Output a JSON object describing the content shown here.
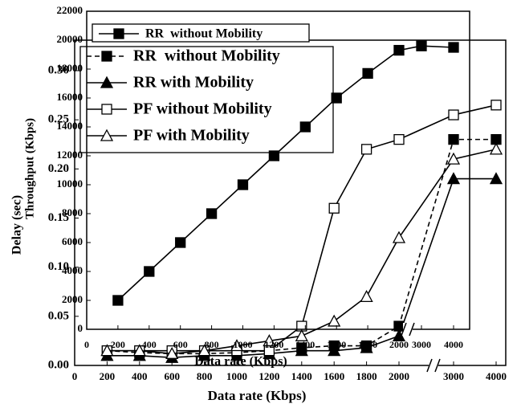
{
  "chart_data": [
    {
      "type": "line",
      "xlabel": "Data rate (Kbps)",
      "ylabel": "Delay (sec)",
      "x": [
        200,
        400,
        600,
        800,
        1000,
        1200,
        1400,
        1600,
        1800,
        2000,
        3000,
        4000
      ],
      "xticks": [
        0,
        200,
        400,
        600,
        800,
        1000,
        1200,
        1400,
        1600,
        1800,
        2000,
        3000,
        4000
      ],
      "ylim": [
        0,
        0.3
      ],
      "yticks": [
        {
          "value": 0,
          "label": "0.00"
        },
        0.05,
        {
          "value": 0.1,
          "label": "0.10"
        },
        0.15,
        {
          "value": 0.2,
          "label": "0.20"
        },
        0.25,
        {
          "value": 0.3,
          "label": "0.30"
        }
      ],
      "series": [
        {
          "name": "RR  without Mobility",
          "color": "#000000",
          "marker": "square-filled",
          "dashed": true,
          "values": [
            0.015,
            0.013,
            0.012,
            0.012,
            0.013,
            0.015,
            0.018,
            0.02,
            0.02,
            0.04,
            0.23,
            0.23
          ]
        },
        {
          "name": "RR with Mobility",
          "color": "#000000",
          "marker": "triangle-filled",
          "dashed": false,
          "values": [
            0.01,
            0.01,
            0.008,
            0.01,
            0.01,
            0.012,
            0.015,
            0.015,
            0.018,
            0.03,
            0.19,
            0.19
          ]
        },
        {
          "name": "PF without Mobility",
          "color": "#000000",
          "marker": "square-open",
          "dashed": false,
          "values": [
            0.015,
            0.015,
            0.015,
            0.015,
            0.015,
            0.015,
            0.04,
            0.16,
            0.22,
            0.23,
            0.255,
            0.265
          ]
        },
        {
          "name": "PF with Mobility",
          "color": "#000000",
          "marker": "triangle-open",
          "dashed": false,
          "values": [
            0.015,
            0.015,
            0.012,
            0.015,
            0.02,
            0.025,
            0.03,
            0.045,
            0.07,
            0.13,
            0.21,
            0.22
          ]
        }
      ]
    },
    {
      "type": "line",
      "xlabel": "Data rate (Kbps)",
      "ylabel": "Throughput (Kbps)",
      "x": [
        200,
        400,
        600,
        800,
        1000,
        1200,
        1400,
        1600,
        1800,
        2000,
        3000,
        4000
      ],
      "xticks": [
        0,
        200,
        400,
        600,
        800,
        1000,
        1200,
        1400,
        1600,
        1800,
        2000,
        3000,
        4000
      ],
      "ylim": [
        0,
        22000
      ],
      "yticks": [
        0,
        2000,
        4000,
        6000,
        8000,
        10000,
        12000,
        14000,
        16000,
        18000,
        20000,
        22000
      ],
      "series": [
        {
          "name": "RR  without Mobility",
          "color": "#000000",
          "marker": "square-filled",
          "dashed": false,
          "values": [
            2000,
            4000,
            6000,
            8000,
            10000,
            12000,
            14000,
            16000,
            17700,
            19300,
            19600,
            19500
          ]
        }
      ]
    }
  ]
}
